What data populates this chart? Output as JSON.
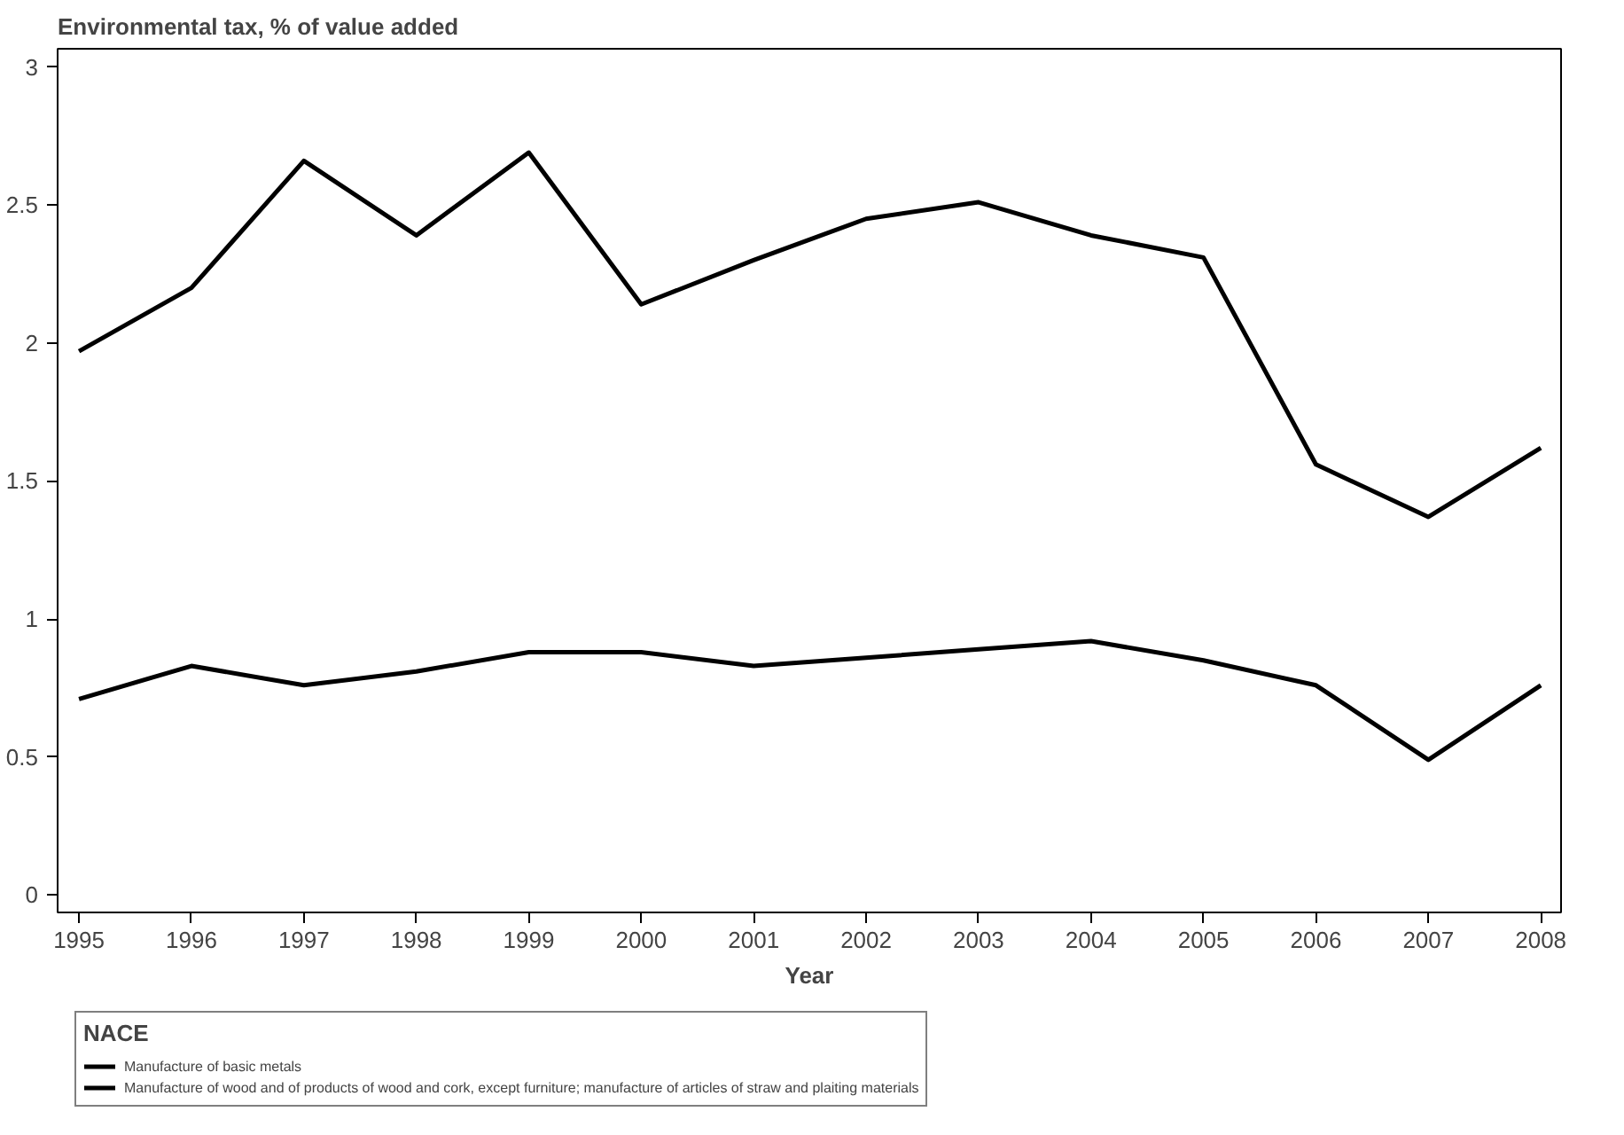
{
  "chart_data": {
    "type": "line",
    "title": "Environmental tax, % of value added",
    "xlabel": "Year",
    "legend_title": "NACE",
    "x": [
      1995,
      1996,
      1997,
      1998,
      1999,
      2000,
      2001,
      2002,
      2003,
      2004,
      2005,
      2006,
      2007,
      2008
    ],
    "series": [
      {
        "name": "Manufacture of basic metals",
        "color": "#000000",
        "values": [
          1.97,
          2.2,
          2.66,
          2.39,
          2.69,
          2.14,
          2.3,
          2.45,
          2.51,
          2.39,
          2.31,
          1.56,
          1.37,
          1.62
        ]
      },
      {
        "name": "Manufacture of wood and of products of wood and cork, except furniture; manufacture of articles of straw and plaiting materials",
        "color": "#000000",
        "values": [
          0.71,
          0.83,
          0.76,
          0.81,
          0.88,
          0.88,
          0.83,
          0.86,
          0.89,
          0.92,
          0.85,
          0.76,
          0.49,
          0.76
        ]
      }
    ],
    "xlim": [
      1994.81,
      2008.18
    ],
    "ylim": [
      -0.063,
      3.066
    ],
    "xticks": [
      1995,
      1996,
      1997,
      1998,
      1999,
      2000,
      2001,
      2002,
      2003,
      2004,
      2005,
      2006,
      2007,
      2008
    ],
    "yticks": [
      0,
      0.5,
      1,
      1.5,
      2,
      2.5,
      3
    ],
    "legend": "bottom",
    "grid": false,
    "line_style": "solid"
  }
}
